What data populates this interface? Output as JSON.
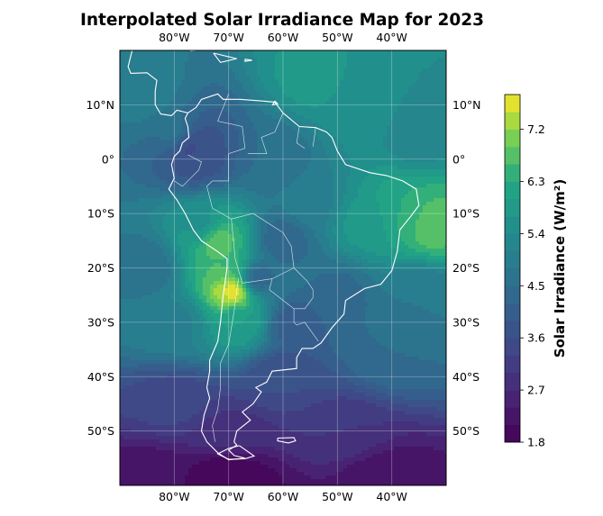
{
  "chart_data": {
    "type": "heatmap",
    "title": "Interpolated Solar Irradiance Map for 2023",
    "colorbar": {
      "label": "Solar Irradiance (W/m²)",
      "min": 1.8,
      "max": 7.8,
      "ticks": [
        1.8,
        2.7,
        3.6,
        4.5,
        5.4,
        6.3,
        7.2
      ],
      "tick_labels": [
        "1.8",
        "2.7",
        "3.6",
        "4.5",
        "5.4",
        "6.3",
        "7.2"
      ],
      "levels": 20,
      "colormap": "viridis"
    },
    "lon_range": [
      -90,
      -30
    ],
    "lat_range": [
      -60,
      20
    ],
    "lon_ticks": [
      -80,
      -70,
      -60,
      -50,
      -40
    ],
    "lon_tick_labels": [
      "80°W",
      "70°W",
      "60°W",
      "50°W",
      "40°W"
    ],
    "lat_ticks": [
      10,
      0,
      -10,
      -20,
      -30,
      -40,
      -50
    ],
    "lat_tick_labels": [
      "10°N",
      "0°",
      "10°S",
      "20°S",
      "30°S",
      "40°S",
      "50°S"
    ],
    "gridlines": true,
    "field_notes": "Irradiance higher (~6-7.8) over Atacama/Andes (~-68, -25), NE Brazil & tropical Atlantic; lowest (~1.8-2.5) toward the far south (-55 to -60).",
    "field_control": [
      {
        "lon": -69,
        "lat": -24,
        "v": 7.8
      },
      {
        "lon": -70,
        "lat": -20,
        "v": 6.6
      },
      {
        "lon": -72,
        "lat": -15,
        "v": 6.8
      },
      {
        "lon": -68,
        "lat": -30,
        "v": 6.0
      },
      {
        "lon": -75,
        "lat": -12,
        "v": 5.6
      },
      {
        "lon": -38,
        "lat": -10,
        "v": 6.3
      },
      {
        "lon": -33,
        "lat": -12,
        "v": 6.8
      },
      {
        "lon": -45,
        "lat": -12,
        "v": 5.8
      },
      {
        "lon": -55,
        "lat": -8,
        "v": 5.0
      },
      {
        "lon": -62,
        "lat": 0,
        "v": 4.5
      },
      {
        "lon": -75,
        "lat": 0,
        "v": 3.8
      },
      {
        "lon": -77,
        "lat": 2,
        "v": 3.5
      },
      {
        "lon": -80,
        "lat": 5,
        "v": 4.6
      },
      {
        "lon": -85,
        "lat": 12,
        "v": 5.0
      },
      {
        "lon": -55,
        "lat": 15,
        "v": 5.8
      },
      {
        "lon": -45,
        "lat": 10,
        "v": 5.6
      },
      {
        "lon": -35,
        "lat": 5,
        "v": 5.2
      },
      {
        "lon": -50,
        "lat": -25,
        "v": 4.4
      },
      {
        "lon": -40,
        "lat": -35,
        "v": 4.5
      },
      {
        "lon": -80,
        "lat": -30,
        "v": 5.0
      },
      {
        "lon": -85,
        "lat": -20,
        "v": 4.6
      },
      {
        "lon": -60,
        "lat": -40,
        "v": 3.6
      },
      {
        "lon": -80,
        "lat": -45,
        "v": 3.4
      },
      {
        "lon": -70,
        "lat": -50,
        "v": 2.9
      },
      {
        "lon": -50,
        "lat": -50,
        "v": 3.0
      },
      {
        "lon": -70,
        "lat": -58,
        "v": 1.9
      },
      {
        "lon": -40,
        "lat": -58,
        "v": 2.2
      },
      {
        "lon": -85,
        "lat": -58,
        "v": 2.2
      },
      {
        "lon": -65,
        "lat": -22,
        "v": 4.2
      },
      {
        "lon": -60,
        "lat": -15,
        "v": 4.3
      },
      {
        "lon": -58,
        "lat": -30,
        "v": 4.0
      },
      {
        "lon": -35,
        "lat": -25,
        "v": 4.8
      }
    ]
  },
  "map": {
    "coastline_color": "#ffffff",
    "gridline_color": "#ffffff"
  }
}
